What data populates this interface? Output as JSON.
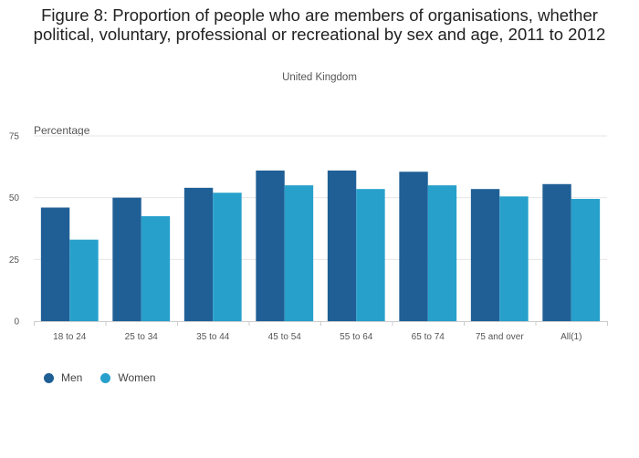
{
  "chart_data": {
    "type": "bar",
    "title": "Figure 8: Proportion of people who are members of organisations, whether political, voluntary, professional or recreational by sex and age, 2011 to 2012",
    "subtitle": "United Kingdom",
    "ylabel": "Percentage",
    "xlabel": "",
    "ylim": [
      0,
      75
    ],
    "yticks": [
      0,
      25,
      50,
      75
    ],
    "categories": [
      "18 to 24",
      "25 to 34",
      "35 to 44",
      "45 to 54",
      "55 to 64",
      "65 to 74",
      "75 and over",
      "All(1)"
    ],
    "series": [
      {
        "name": "Men",
        "color": "#1f5f96",
        "values": [
          46,
          50,
          54,
          61,
          61,
          60.5,
          53.5,
          55.5
        ]
      },
      {
        "name": "Women",
        "color": "#27a0cc",
        "values": [
          33,
          42.5,
          52,
          55,
          53.5,
          55,
          50.5,
          49.5
        ]
      }
    ],
    "legend_position": "bottom-left",
    "grid": true
  }
}
